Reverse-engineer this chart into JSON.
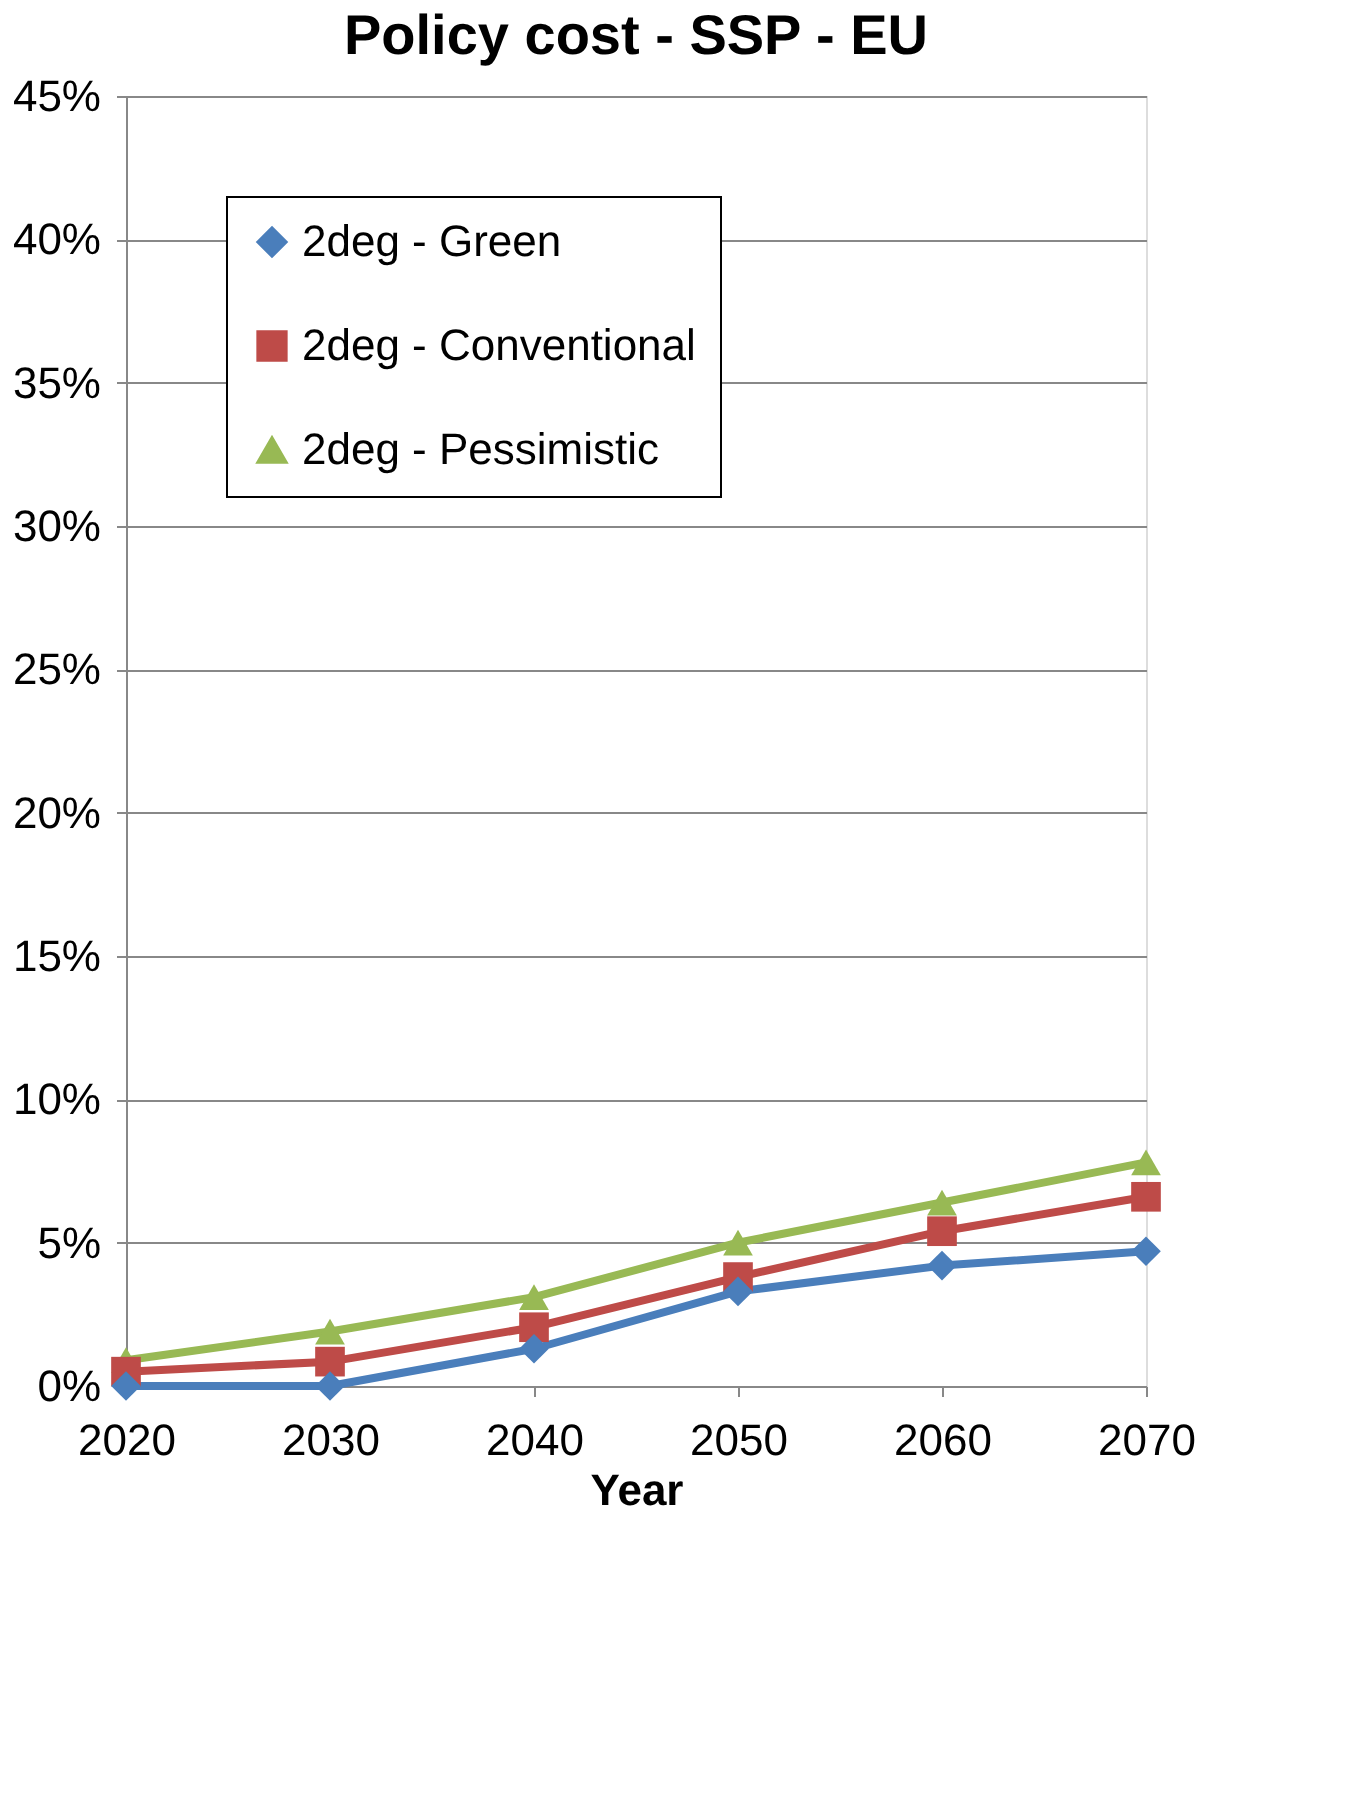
{
  "chart_data": {
    "type": "line",
    "title": "Policy cost - SSP - EU",
    "xlabel": "Year",
    "categories": [
      "2020",
      "2030",
      "2040",
      "2050",
      "2060",
      "2070"
    ],
    "series": [
      {
        "name": "2deg - Green",
        "color": "#4a7ebb",
        "marker": "diamond",
        "values": [
          0,
          0,
          1.3,
          3.3,
          4.2,
          4.7
        ]
      },
      {
        "name": "2deg - Conventional",
        "color": "#be4b48",
        "marker": "square",
        "values": [
          0.5,
          0.85,
          2.05,
          3.8,
          5.4,
          6.6
        ]
      },
      {
        "name": "2deg - Pessimistic",
        "color": "#98b954",
        "marker": "triangle",
        "values": [
          0.9,
          1.9,
          3.1,
          5.0,
          6.4,
          7.8
        ]
      }
    ],
    "ylim": [
      0,
      45
    ],
    "yticks": [
      {
        "value": 0,
        "label": "0%"
      },
      {
        "value": 5,
        "label": "5%"
      },
      {
        "value": 10,
        "label": "10%"
      },
      {
        "value": 15,
        "label": "15%"
      },
      {
        "value": 20,
        "label": "20%"
      },
      {
        "value": 25,
        "label": "25%"
      },
      {
        "value": 30,
        "label": "30%"
      },
      {
        "value": 35,
        "label": "35%"
      },
      {
        "value": 40,
        "label": "40%"
      },
      {
        "value": 45,
        "label": "45%"
      }
    ],
    "grid": "y",
    "legend": "top left",
    "line_style": "solid"
  }
}
